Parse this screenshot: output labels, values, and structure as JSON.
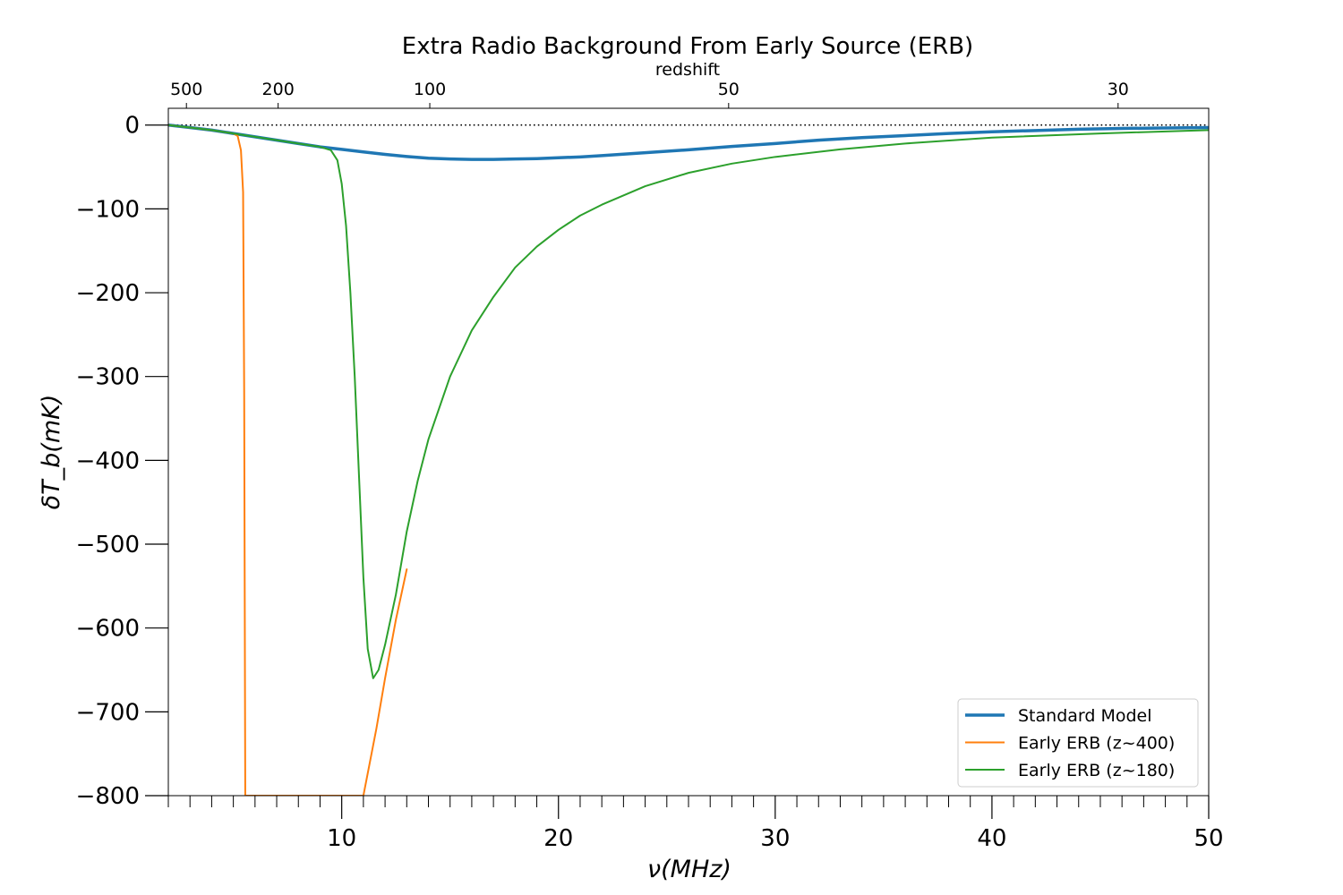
{
  "chart_data": {
    "type": "line",
    "title": "Extra Radio Background From Early Source (ERB)",
    "xlabel": "ν(MHz)",
    "ylabel": "δT_b(mK)",
    "top_axis_label": "redshift",
    "xlim": [
      2,
      50
    ],
    "ylim": [
      -800,
      20
    ],
    "x_major_ticks": [
      10,
      20,
      30,
      40,
      50
    ],
    "x_minor_step": 1,
    "y_ticks": [
      0,
      -100,
      -200,
      -300,
      -400,
      -500,
      -600,
      -700,
      -800
    ],
    "top_ticks": [
      {
        "z": 500,
        "label": "500"
      },
      {
        "z": 200,
        "label": "200"
      },
      {
        "z": 100,
        "label": "100"
      },
      {
        "z": 50,
        "label": "50"
      },
      {
        "z": 30,
        "label": "30"
      }
    ],
    "reference_line": {
      "y": 0,
      "style": "dotted"
    },
    "legend": {
      "position": "bottom-right"
    },
    "series": [
      {
        "name": "Standard Model",
        "color": "#1f77b4",
        "width": 3.5,
        "x": [
          2,
          3,
          4,
          5,
          6,
          7,
          8,
          9,
          10,
          11,
          12,
          13,
          14,
          15,
          16,
          17,
          18,
          19,
          20,
          21,
          22,
          24,
          26,
          28,
          30,
          32,
          34,
          36,
          38,
          40,
          42,
          44,
          46,
          48,
          50
        ],
        "y": [
          0,
          -3,
          -6,
          -10,
          -14,
          -18,
          -22,
          -26,
          -29,
          -32,
          -35,
          -37.5,
          -39.5,
          -40.5,
          -41,
          -41,
          -40.5,
          -40,
          -39,
          -38,
          -36.5,
          -33,
          -29.5,
          -25.5,
          -22,
          -18,
          -15,
          -12.5,
          -10,
          -8,
          -6.5,
          -5,
          -4,
          -3.5,
          -3
        ]
      },
      {
        "name": "Early ERB (z~400)",
        "color": "#ff7f0e",
        "width": 2,
        "x": [
          2,
          3,
          4,
          5,
          5.2,
          5.35,
          5.45,
          5.5,
          5.55,
          11.0,
          11.3,
          11.6,
          12.0,
          12.5,
          13.0
        ],
        "y": [
          0,
          -3,
          -6,
          -10,
          -13,
          -30,
          -80,
          -320,
          -800,
          -800,
          -760,
          -720,
          -660,
          -590,
          -530
        ]
      },
      {
        "name": "Early ERB (z~180)",
        "color": "#2ca02c",
        "width": 2,
        "x": [
          2,
          3,
          4,
          5,
          6,
          7,
          8,
          9,
          9.5,
          9.8,
          10.0,
          10.2,
          10.4,
          10.6,
          10.8,
          11.0,
          11.2,
          11.45,
          11.7,
          12.0,
          12.5,
          13.0,
          13.5,
          14.0,
          15.0,
          16.0,
          17.0,
          18.0,
          19.0,
          20.0,
          21.0,
          22.0,
          24.0,
          26.0,
          28.0,
          30.0,
          33.0,
          36.0,
          40.0,
          45.0,
          50.0
        ],
        "y": [
          0,
          -3,
          -6,
          -10,
          -14,
          -18,
          -22,
          -26,
          -30,
          -42,
          -70,
          -120,
          -200,
          -300,
          -420,
          -540,
          -625,
          -660,
          -650,
          -620,
          -560,
          -485,
          -425,
          -375,
          -300,
          -245,
          -205,
          -170,
          -145,
          -125,
          -108,
          -95,
          -73,
          -57,
          -46,
          -38,
          -29,
          -22,
          -15,
          -10,
          -6
        ]
      }
    ]
  }
}
